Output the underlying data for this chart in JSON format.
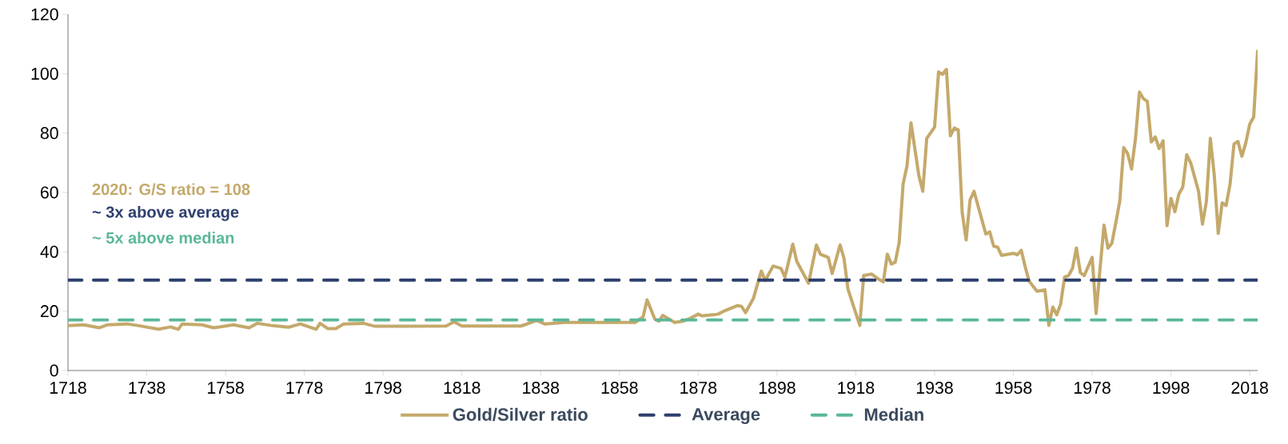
{
  "chart_data": {
    "type": "line",
    "x": [
      1718,
      1722,
      1726,
      1728,
      1733,
      1736,
      1741,
      1744,
      1746,
      1747,
      1752,
      1755,
      1760,
      1764,
      1766,
      1770,
      1774,
      1777,
      1781,
      1782,
      1784,
      1786,
      1788,
      1793,
      1796,
      1814,
      1816,
      1818,
      1833,
      1835,
      1837,
      1839,
      1844,
      1862,
      1864,
      1865,
      1867,
      1868,
      1869,
      1872,
      1874,
      1876,
      1878,
      1879,
      1882,
      1883,
      1885,
      1888,
      1889,
      1890,
      1892,
      1894,
      1895,
      1897,
      1899,
      1900,
      1902,
      1903,
      1906,
      1908,
      1909,
      1911,
      1912,
      1914,
      1915,
      1916,
      1919,
      1920,
      1922,
      1924,
      1925,
      1926,
      1927,
      1928,
      1929,
      1930,
      1931,
      1932,
      1934,
      1935,
      1936,
      1938,
      1939,
      1940,
      1941,
      1942,
      1943,
      1944,
      1945,
      1946,
      1947,
      1948,
      1951,
      1952,
      1953,
      1954,
      1955,
      1958,
      1959,
      1960,
      1961,
      1962,
      1964,
      1966,
      1967,
      1968,
      1969,
      1970,
      1971,
      1972,
      1973,
      1974,
      1975,
      1976,
      1978,
      1979,
      1980,
      1981,
      1982,
      1983,
      1984,
      1985,
      1986,
      1987,
      1988,
      1989,
      1990,
      1991,
      1992,
      1993,
      1994,
      1995,
      1996,
      1997,
      1998,
      1999,
      2000,
      2001,
      2002,
      2003,
      2005,
      2006,
      2007,
      2008,
      2009,
      2010,
      2011,
      2012,
      2013,
      2014,
      2015,
      2016,
      2017,
      2018,
      2019,
      2020
    ],
    "series": [
      {
        "name": "Gold/Silver ratio",
        "color": "#c4a96b",
        "values": [
          15.1,
          15.4,
          14.4,
          15.4,
          15.7,
          15.1,
          13.9,
          14.7,
          13.9,
          15.7,
          15.4,
          14.4,
          15.4,
          14.4,
          15.9,
          15.1,
          14.6,
          15.7,
          13.9,
          15.9,
          14.1,
          14.1,
          15.7,
          15.9,
          14.9,
          15.0,
          16.4,
          15.0,
          15.0,
          15.9,
          16.9,
          15.7,
          16.2,
          16.2,
          18.1,
          23.8,
          17.3,
          16.6,
          18.6,
          16.2,
          16.6,
          17.6,
          19.0,
          18.4,
          18.8,
          19.0,
          20.3,
          21.9,
          21.6,
          19.5,
          24.3,
          33.5,
          30.3,
          35.2,
          34.4,
          31.5,
          42.6,
          36.8,
          29.4,
          42.3,
          39.2,
          38.1,
          32.7,
          42.3,
          37.8,
          27.5,
          15.2,
          32.0,
          32.5,
          30.6,
          29.9,
          39.2,
          35.9,
          36.5,
          43.1,
          62.8,
          69.0,
          83.5,
          65.7,
          60.4,
          78.2,
          82.0,
          100.6,
          99.8,
          101.5,
          79.1,
          81.7,
          81.1,
          53.2,
          44.0,
          57.5,
          60.4,
          46.0,
          46.7,
          41.9,
          41.6,
          38.8,
          39.5,
          39.0,
          40.5,
          34.9,
          30.1,
          26.7,
          27.2,
          15.2,
          21.4,
          18.8,
          22.4,
          31.5,
          32.0,
          34.4,
          41.3,
          33.0,
          32.0,
          38.1,
          19.2,
          34.4,
          49.0,
          41.2,
          42.9,
          49.8,
          57.0,
          75.1,
          73.1,
          67.9,
          78.2,
          93.8,
          91.6,
          90.7,
          77.0,
          78.7,
          74.8,
          77.4,
          48.8,
          58.0,
          53.5,
          59.4,
          61.8,
          72.7,
          70.0,
          60.4,
          49.3,
          57.0,
          78.2,
          65.7,
          46.2,
          56.5,
          55.6,
          62.8,
          76.3,
          77.2,
          72.2,
          76.7,
          83.0,
          85.4,
          108
        ]
      }
    ],
    "ref_lines": [
      {
        "axis": "y",
        "value": 30.5,
        "label": "Average",
        "color": "#2e3f6e",
        "line_style": "dashed"
      },
      {
        "axis": "y",
        "value": 17,
        "label": "Median",
        "color": "#5bb898",
        "line_style": "dashed"
      }
    ],
    "annotations": [
      "2020: G/S ratio = 108",
      "~ 3x above average",
      "~ 5x above median"
    ],
    "xlim": [
      1718,
      2020
    ],
    "xticks": [
      1718,
      1738,
      1758,
      1778,
      1798,
      1818,
      1838,
      1858,
      1878,
      1898,
      1918,
      1938,
      1958,
      1978,
      1998,
      2018
    ],
    "ylim": [
      0,
      120
    ],
    "yticks": [
      0,
      20,
      40,
      60,
      80,
      100,
      120
    ],
    "legend": "bottom",
    "grid": false
  }
}
